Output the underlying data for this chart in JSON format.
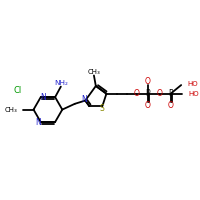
{
  "background_color": "#ffffff",
  "line_color": "#000000",
  "nitrogen_color": "#2222cc",
  "oxygen_color": "#cc0000",
  "chlorine_color": "#009900",
  "bond_width": 1.3,
  "figsize": [
    2.0,
    2.0
  ],
  "dpi": 100,
  "xlim": [
    -0.5,
    9.5
  ],
  "ylim": [
    -3.0,
    3.0
  ]
}
